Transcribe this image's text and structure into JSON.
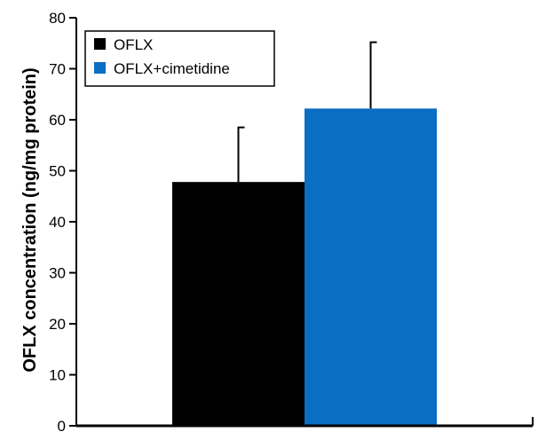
{
  "chart_data": {
    "type": "bar",
    "title": "",
    "xlabel": "",
    "ylabel": "OFLX concentration (ng/mg protein)",
    "ylim": [
      0,
      80
    ],
    "yticks": [
      0,
      10,
      20,
      30,
      40,
      50,
      60,
      70,
      80
    ],
    "grid": false,
    "legend_position": "top-left",
    "series": [
      {
        "name": "OFLX",
        "values": [
          47.8
        ],
        "error": [
          10.7
        ],
        "color": "#000000"
      },
      {
        "name": "OFLX+cimetidine",
        "values": [
          62.2
        ],
        "error": [
          13.0
        ],
        "color": "#0a6fc2"
      }
    ]
  }
}
